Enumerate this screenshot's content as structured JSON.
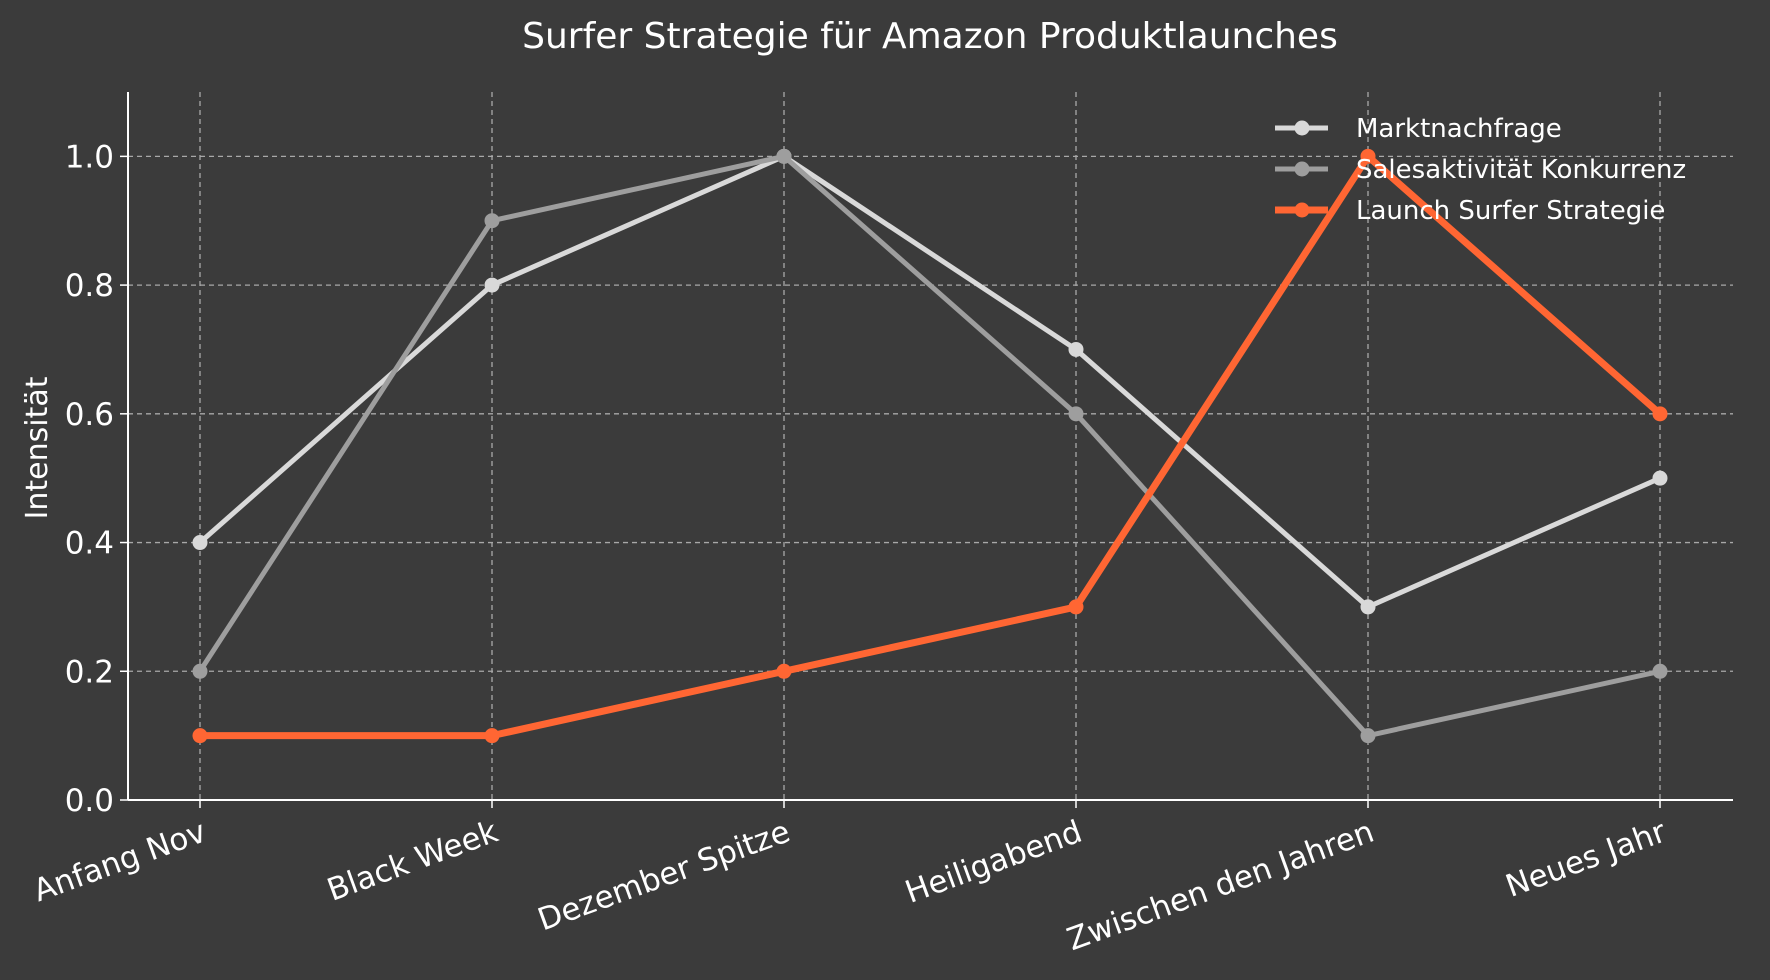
{
  "chart_data": {
    "type": "line",
    "title": "Surfer Strategie für Amazon Produktlaunches",
    "xlabel": "",
    "ylabel": "Intensität",
    "categories": [
      "Anfang Nov",
      "Black Week",
      "Dezember Spitze",
      "Heiligabend",
      "Zwischen den Jahren",
      "Neues Jahr"
    ],
    "ylim": [
      0,
      1.1
    ],
    "yticks": [
      "0.0",
      "0.2",
      "0.4",
      "0.6",
      "0.8",
      "1.0"
    ],
    "grid": true,
    "legend_position": "top-right",
    "series": [
      {
        "name": "Marktnachfrage",
        "color": "#d9d9d9",
        "values": [
          0.4,
          0.8,
          1.0,
          0.7,
          0.3,
          0.5
        ]
      },
      {
        "name": "Salesaktivität Konkurrenz",
        "color": "#9e9e9e",
        "values": [
          0.2,
          0.9,
          1.0,
          0.6,
          0.1,
          0.2
        ]
      },
      {
        "name": "Launch Surfer Strategie",
        "color": "#ff6633",
        "values": [
          0.1,
          0.1,
          0.2,
          0.3,
          1.0,
          0.6
        ]
      }
    ]
  }
}
